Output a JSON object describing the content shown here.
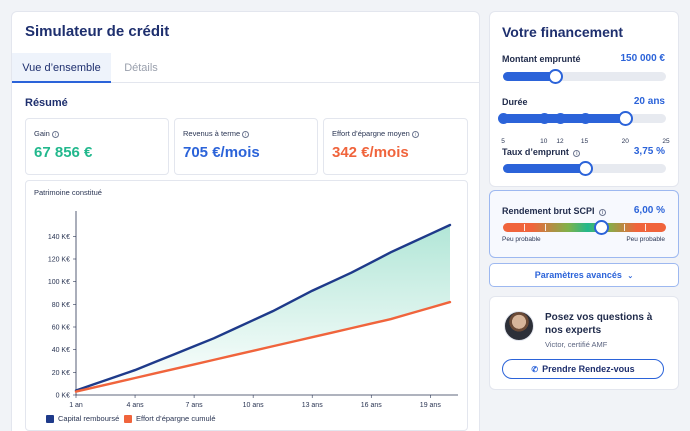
{
  "simulator": {
    "title": "Simulateur de crédit",
    "tabs": [
      {
        "label": "Vue d’ensemble",
        "active": true
      },
      {
        "label": "Détails",
        "active": false
      }
    ],
    "resume_title": "Résumé",
    "kpis": [
      {
        "label": "Gain",
        "value": "67 856 €",
        "color": "#22b88d"
      },
      {
        "label": "Revenus à terme",
        "value": "705 €/mois",
        "color": "#2b63d9"
      },
      {
        "label": "Effort d’épargne moyen",
        "value": "342 €/mois",
        "color": "#f0643c"
      }
    ]
  },
  "chart_data": {
    "type": "line",
    "title": "Patrimoine constitué",
    "categories": [
      "1 an",
      "4 ans",
      "7 ans",
      "10 ans",
      "13 ans",
      "16 ans",
      "19 ans"
    ],
    "x": [
      1,
      2,
      3,
      4,
      5,
      6,
      7,
      8,
      9,
      10,
      11,
      12,
      13,
      14,
      15,
      16,
      17,
      18,
      19,
      20
    ],
    "yticks": [
      "0 K€",
      "20 K€",
      "40 K€",
      "60 K€",
      "80 K€",
      "100 K€",
      "120 K€",
      "140 K€"
    ],
    "ylim": [
      0,
      150
    ],
    "xlim": [
      1,
      20
    ],
    "series": [
      {
        "name": "Capital remboursé",
        "color": "#1e3a8a",
        "values": [
          4,
          10,
          16,
          22,
          29,
          36,
          43,
          50,
          58,
          66,
          74,
          83,
          92,
          100,
          108,
          117,
          126,
          134,
          142,
          150
        ]
      },
      {
        "name": "Effort d’épargne cumulé",
        "color": "#f0643c",
        "values": [
          3,
          7,
          11,
          15,
          19,
          23,
          27,
          31,
          35,
          39,
          43,
          47,
          51,
          55,
          59,
          63,
          67,
          72,
          77,
          82
        ]
      }
    ],
    "legend_position": "bottom-left",
    "grid": false
  },
  "financement": {
    "title": "Votre financement",
    "montant": {
      "label": "Montant emprunté",
      "value": "150 000 €",
      "fraction": 0.32
    },
    "duree": {
      "label": "Durée",
      "value": "20 ans",
      "fraction": 0.75,
      "marks": [
        "5",
        "10",
        "12",
        "15",
        "20",
        "25"
      ],
      "mark_values": [
        5,
        10,
        12,
        15,
        20,
        25
      ]
    },
    "taux": {
      "label": "Taux d’emprunt",
      "value": "3,75 %",
      "fraction": 0.5
    }
  },
  "scpi": {
    "label": "Rendement brut SCPI",
    "value": "6,00 %",
    "fraction": 0.6,
    "left_caption": "Peu probable",
    "right_caption": "Peu probable"
  },
  "params_button": {
    "label": "Paramètres avancés",
    "icon": "chevron-down-icon"
  },
  "expert": {
    "title": "Posez vos questions à nos experts",
    "subtitle": "Victor, certifié AMF",
    "cta_label": "Prendre Rendez-vous",
    "cta_icon": "phone-icon"
  }
}
